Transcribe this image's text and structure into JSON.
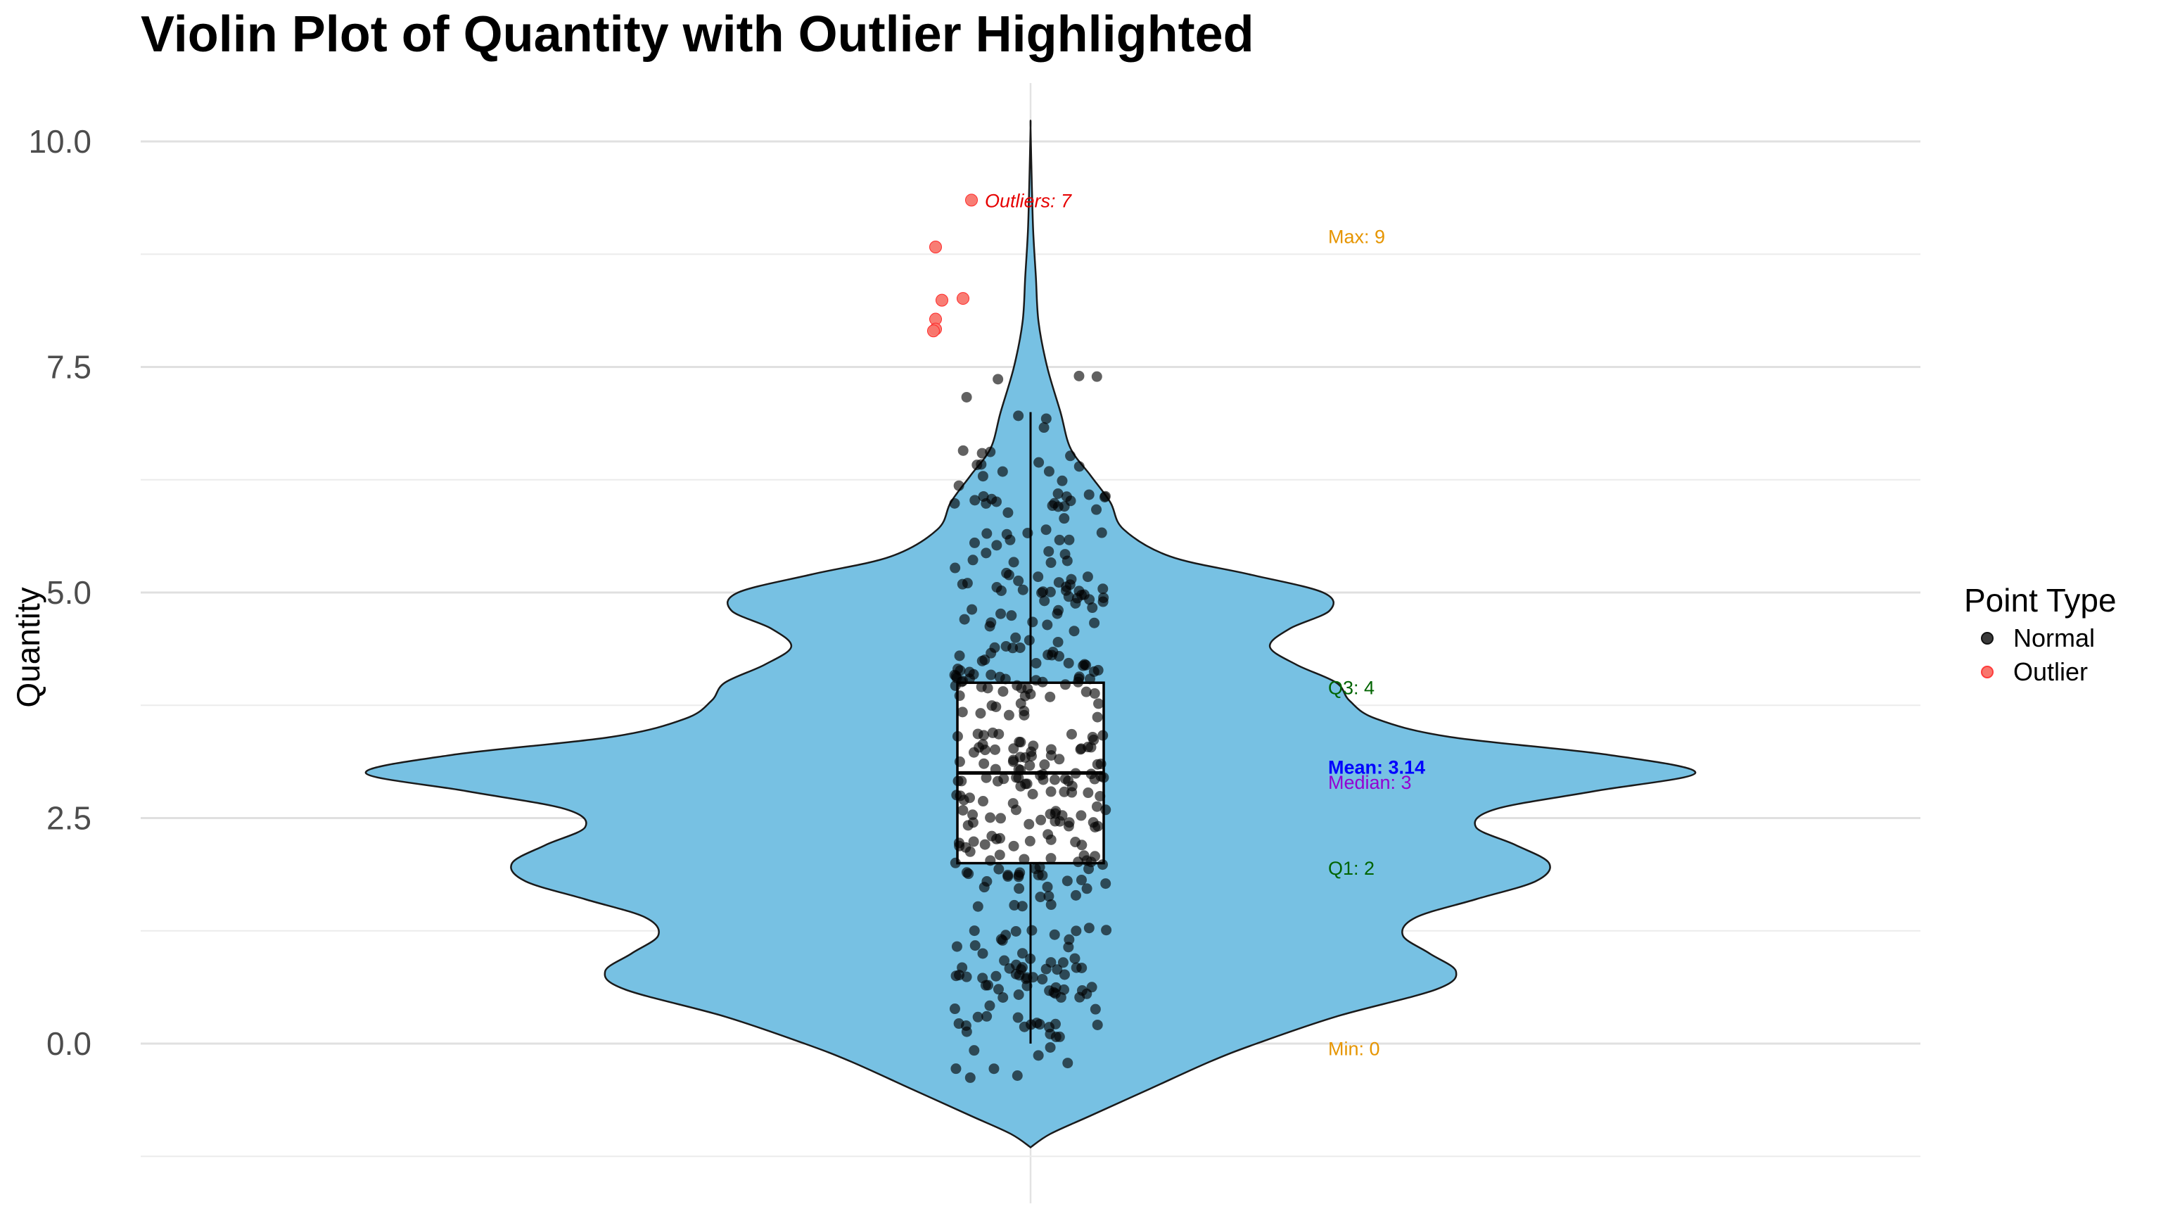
{
  "chart_data": {
    "type": "violin",
    "title": "Violin Plot of Quantity with Outlier Highlighted",
    "xlabel": "",
    "ylabel": "Quantity",
    "ylim": [
      -1.25,
      10.75
    ],
    "yticks": [
      0,
      2.5,
      5,
      7.5,
      10
    ],
    "ytick_labels": [
      "0.0",
      "2.5",
      "5.0",
      "7.5",
      "10.0"
    ],
    "grid": true,
    "violin": {
      "fill": "#77C1E3",
      "stroke": "#1a1a1a",
      "density_profile": [
        [
          -1.15,
          0.0
        ],
        [
          -1.0,
          0.03
        ],
        [
          -0.8,
          0.09
        ],
        [
          -0.5,
          0.18
        ],
        [
          -0.2,
          0.27
        ],
        [
          0.0,
          0.34
        ],
        [
          0.3,
          0.46
        ],
        [
          0.6,
          0.61
        ],
        [
          0.8,
          0.64
        ],
        [
          1.0,
          0.6
        ],
        [
          1.2,
          0.56
        ],
        [
          1.4,
          0.58
        ],
        [
          1.6,
          0.67
        ],
        [
          1.8,
          0.76
        ],
        [
          2.0,
          0.78
        ],
        [
          2.2,
          0.73
        ],
        [
          2.4,
          0.67
        ],
        [
          2.6,
          0.7
        ],
        [
          2.8,
          0.85
        ],
        [
          3.0,
          1.0
        ],
        [
          3.2,
          0.87
        ],
        [
          3.4,
          0.63
        ],
        [
          3.6,
          0.52
        ],
        [
          3.8,
          0.48
        ],
        [
          4.0,
          0.46
        ],
        [
          4.2,
          0.4
        ],
        [
          4.4,
          0.36
        ],
        [
          4.6,
          0.39
        ],
        [
          4.8,
          0.45
        ],
        [
          5.0,
          0.44
        ],
        [
          5.2,
          0.33
        ],
        [
          5.4,
          0.21
        ],
        [
          5.7,
          0.14
        ],
        [
          6.0,
          0.12
        ],
        [
          6.3,
          0.09
        ],
        [
          6.6,
          0.06
        ],
        [
          7.0,
          0.045
        ],
        [
          7.5,
          0.025
        ],
        [
          8.0,
          0.012
        ],
        [
          8.5,
          0.008
        ],
        [
          9.0,
          0.004
        ],
        [
          9.5,
          0.002
        ],
        [
          10.15,
          0.0
        ]
      ]
    },
    "boxplot": {
      "min": 0,
      "q1": 2,
      "median": 3,
      "q3": 4,
      "max": 7,
      "fill": "#ffffff",
      "stroke": "#000000"
    },
    "outliers": {
      "color": "#F8766D",
      "points": [
        {
          "x": -0.28,
          "y": 9.35
        },
        {
          "x": -0.45,
          "y": 8.83
        },
        {
          "x": -0.42,
          "y": 8.24
        },
        {
          "x": -0.32,
          "y": 8.26
        },
        {
          "x": -0.45,
          "y": 8.03
        },
        {
          "x": -0.45,
          "y": 7.92
        },
        {
          "x": -0.46,
          "y": 7.9
        }
      ]
    },
    "normal_points": {
      "color": "#000000",
      "approx_count": 400,
      "summary": {
        "min": 0,
        "q1": 2,
        "median": 3,
        "q3": 4,
        "max": 7,
        "mean": 3.14
      }
    },
    "annotations": [
      {
        "label": "Outliers: 7",
        "y": 9.35,
        "color": "#E60000",
        "italic": true,
        "bold": false
      },
      {
        "label": "Max: 9",
        "y": 8.95,
        "color": "#E69500",
        "italic": false,
        "bold": false
      },
      {
        "label": "Q3: 4",
        "y": 3.95,
        "color": "#006400",
        "italic": false,
        "bold": false
      },
      {
        "label": "Mean: 3.14",
        "y": 3.07,
        "color": "#0000FF",
        "italic": false,
        "bold": true
      },
      {
        "label": "Median: 3",
        "y": 2.9,
        "color": "#9400D3",
        "italic": false,
        "bold": false
      },
      {
        "label": "Q1: 2",
        "y": 1.95,
        "color": "#006400",
        "italic": false,
        "bold": false
      },
      {
        "label": "Min: 0",
        "y": -0.05,
        "color": "#E69500",
        "italic": false,
        "bold": false
      }
    ],
    "legend": {
      "title": "Point Type",
      "position": "right",
      "entries": [
        {
          "label": "Normal",
          "color": "#3a3a3a"
        },
        {
          "label": "Outlier",
          "color": "#F8766D"
        }
      ]
    }
  }
}
